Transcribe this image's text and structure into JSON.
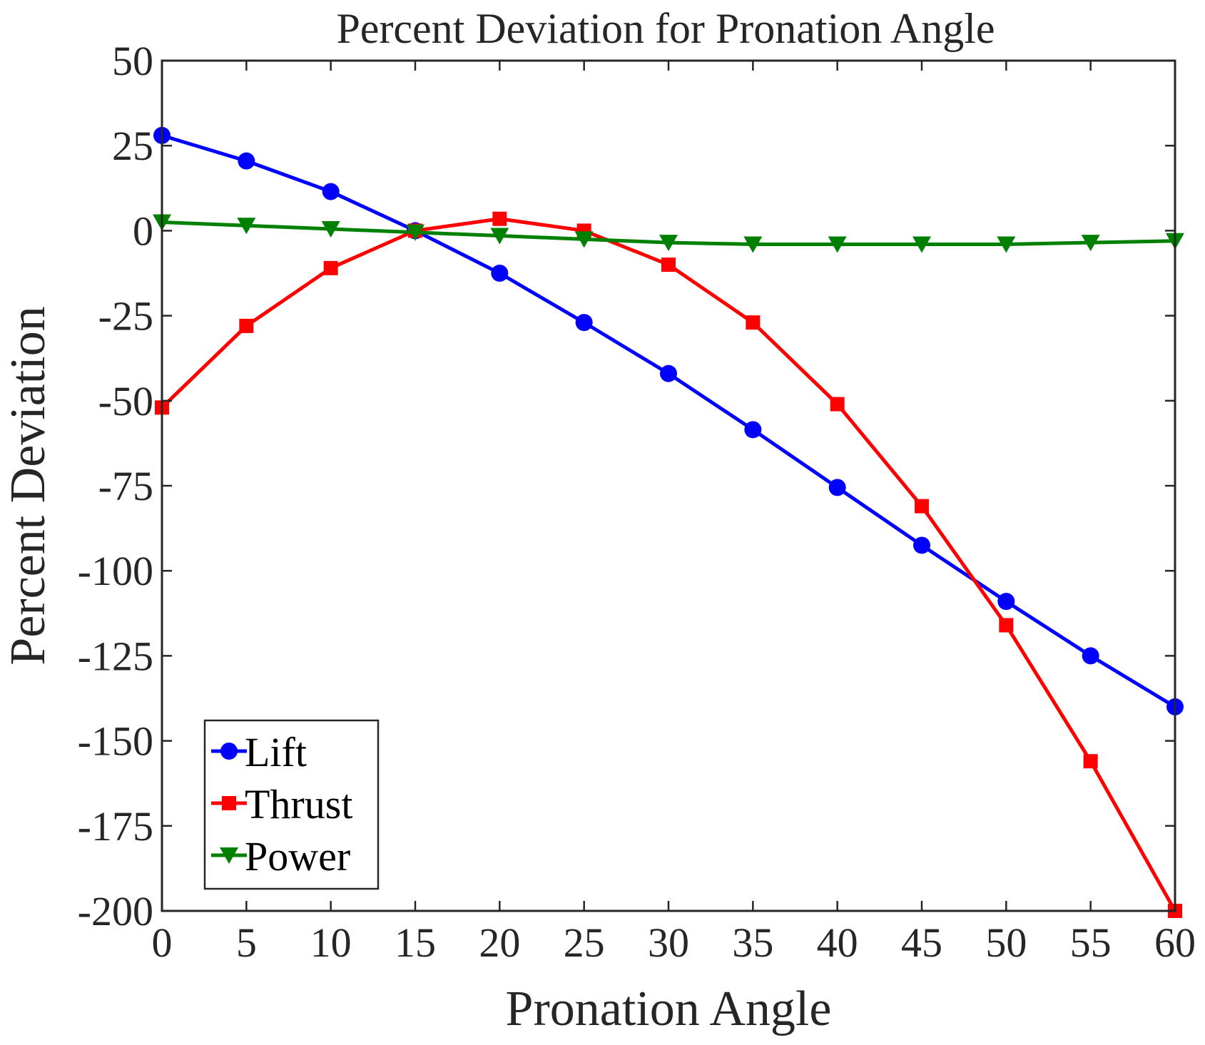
{
  "chart_data": {
    "type": "line",
    "title": "Percent Deviation for Pronation Angle",
    "xlabel": "Pronation Angle",
    "ylabel": "Percent Deviation",
    "xlim": [
      0,
      60
    ],
    "ylim": [
      -200,
      50
    ],
    "xticks": [
      0,
      5,
      10,
      15,
      20,
      25,
      30,
      35,
      40,
      45,
      50,
      55,
      60
    ],
    "yticks": [
      50,
      25,
      0,
      -25,
      -50,
      -75,
      -100,
      -125,
      -150,
      -175,
      -200
    ],
    "grid": false,
    "legend_position": "bottom-left",
    "x": [
      0,
      5,
      10,
      15,
      20,
      25,
      30,
      35,
      40,
      45,
      50,
      55,
      60
    ],
    "series": [
      {
        "name": "Lift",
        "color": "#0000ff",
        "marker": "circle",
        "values": [
          28,
          20.5,
          11.5,
          0,
          -12.5,
          -27,
          -42,
          -58.5,
          -75.5,
          -92.5,
          -109,
          -125,
          -140
        ]
      },
      {
        "name": "Thrust",
        "color": "#ff0000",
        "marker": "square",
        "values": [
          -52,
          -28,
          -11,
          0,
          3.5,
          0,
          -10,
          -27,
          -51,
          -81,
          -116,
          -156,
          -200
        ]
      },
      {
        "name": "Power",
        "color": "#008000",
        "marker": "triangle-down",
        "values": [
          2.5,
          1.5,
          0.5,
          -0.5,
          -1.5,
          -2.5,
          -3.5,
          -4,
          -4,
          -4,
          -4,
          -3.5,
          -3
        ]
      }
    ]
  }
}
